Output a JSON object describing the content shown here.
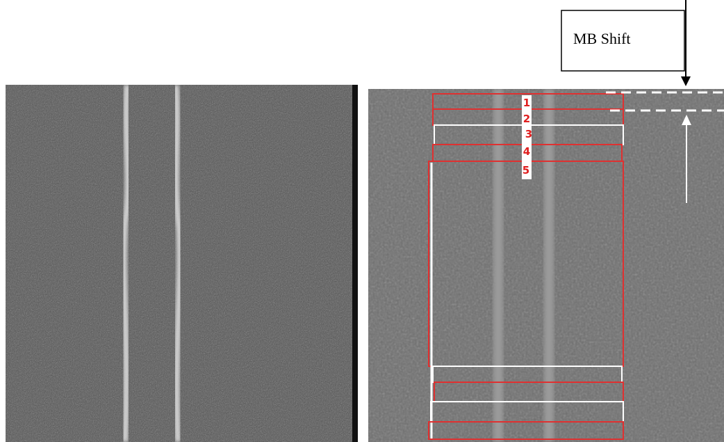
{
  "annotation": {
    "label": "MB Shift"
  },
  "markers": {
    "labels": [
      "1",
      "2",
      "3",
      "4",
      "5"
    ]
  }
}
